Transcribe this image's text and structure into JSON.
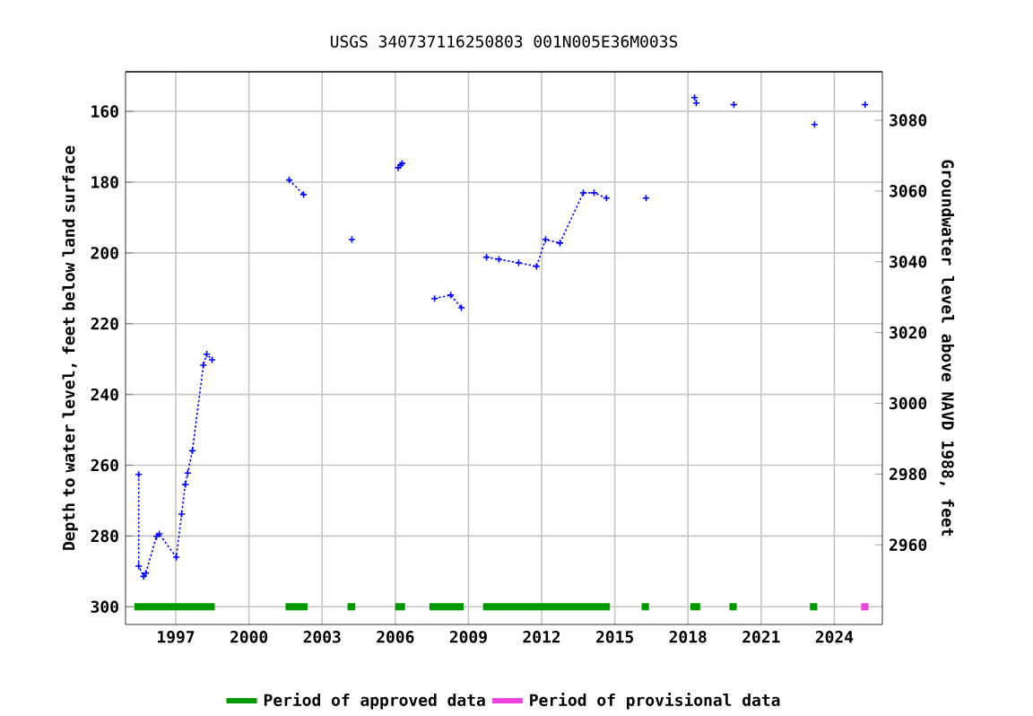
{
  "chart_data": {
    "type": "line",
    "title": "USGS 340737116250803 001N005E36M003S",
    "ylabel": "Depth to water level, feet below land surface",
    "y2label": "Groundwater level above NAVD 1988, feet",
    "xlim": [
      1994.94,
      2025.97
    ],
    "ylim": [
      305.0,
      148.8
    ],
    "y2lim": [
      2937.5,
      3093.7
    ],
    "xticks": [
      1997,
      2000,
      2003,
      2006,
      2009,
      2012,
      2015,
      2018,
      2021,
      2024
    ],
    "yticks": [
      160,
      180,
      200,
      220,
      240,
      260,
      280,
      300
    ],
    "y2ticks": [
      2960,
      2980,
      3000,
      3020,
      3040,
      3060,
      3080
    ],
    "grid": true,
    "legend": "bottom",
    "marker": "cross",
    "line_style": "dotted",
    "series": [
      {
        "color": "#0000ff",
        "x": [
          1995.48,
          1995.48,
          1995.68,
          1995.77,
          1996.21,
          1996.32,
          1997.02,
          1997.24,
          1997.39,
          1997.49,
          1997.68,
          1998.13,
          1998.27,
          1998.49,
          1999.5,
          2001.65,
          2002.24,
          2003.2,
          2004.22,
          2005.2,
          2006.12,
          2006.16,
          2006.21,
          2006.25,
          2006.28,
          2007.0,
          2007.61,
          2008.27,
          2008.71,
          2009.2,
          2009.74,
          2010.25,
          2011.06,
          2011.79,
          2012.16,
          2012.75,
          2013.71,
          2014.15,
          2014.66,
          2015.5,
          2016.28,
          2017.3,
          2018.27,
          2018.3,
          2018.34,
          2019.1,
          2019.88,
          2021.5,
          2023.19,
          2024.2,
          2025.26
        ],
        "values": [
          262.6,
          288.5,
          291.4,
          290.5,
          280.1,
          279.4,
          286.0,
          273.8,
          265.4,
          262.2,
          255.9,
          231.7,
          228.6,
          230.2,
          null,
          179.4,
          183.5,
          null,
          196.2,
          null,
          175.9,
          null,
          175.2,
          null,
          174.7,
          null,
          212.9,
          211.9,
          215.5,
          null,
          201.2,
          201.8,
          202.8,
          203.8,
          196.2,
          197.2,
          183.0,
          183.0,
          184.5,
          null,
          184.5,
          null,
          156.1,
          null,
          157.6,
          null,
          158.1,
          null,
          163.7,
          null,
          158.1
        ]
      },
      {
        "name": "Period of approved data",
        "color": "#009900",
        "marker": "none",
        "line_style": "solid",
        "x": [
          1995.3,
          1998.6,
          1999.0,
          2001.5,
          2002.4,
          2003.0,
          2004.04,
          2004.36,
          2005.0,
          2006.0,
          2006.4,
          2007.0,
          2007.4,
          2008.8,
          2009.2,
          2009.6,
          2014.8,
          2015.5,
          2016.1,
          2016.4,
          2017.0,
          2018.1,
          2018.5,
          2019.0,
          2019.7,
          2020.0,
          2021.0,
          2023.0,
          2023.3
        ],
        "values": [
          300,
          300,
          null,
          300,
          300,
          null,
          300,
          300,
          null,
          300,
          300,
          null,
          300,
          300,
          null,
          300,
          300,
          null,
          300,
          300,
          null,
          300,
          300,
          null,
          300,
          300,
          null,
          300,
          300
        ]
      },
      {
        "name": "Period of provisional data",
        "color": "#ee44dd",
        "marker": "none",
        "line_style": "solid",
        "x": [
          2025.1,
          2025.4
        ],
        "values": [
          300,
          300
        ]
      }
    ]
  }
}
